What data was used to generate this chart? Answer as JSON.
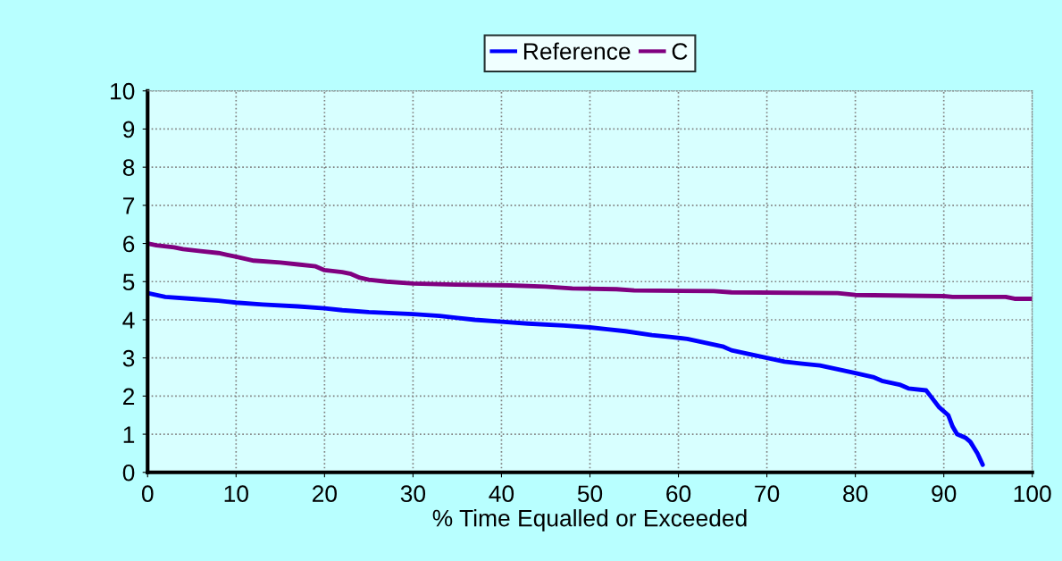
{
  "chart_data": {
    "type": "line",
    "xlabel": "% Time Equalled or Exceeded",
    "xlim": [
      0,
      100
    ],
    "xticks": [
      0,
      10,
      20,
      30,
      40,
      50,
      60,
      70,
      80,
      90,
      100
    ],
    "ylim": [
      0,
      10
    ],
    "yticks": [
      0,
      1,
      2,
      3,
      4,
      5,
      6,
      7,
      8,
      9,
      10
    ],
    "grid": true,
    "legend": "top",
    "marker": "none",
    "line_style": "solid",
    "series": [
      {
        "name": "Reference",
        "color": "#0000ff",
        "x": [
          0,
          2,
          5,
          8,
          10,
          13,
          17,
          20,
          22,
          25,
          30,
          33,
          35,
          37,
          40,
          43,
          47,
          50,
          52,
          54,
          57,
          59,
          61,
          63,
          65,
          66,
          68,
          70,
          72,
          74,
          76,
          78,
          80,
          82,
          83,
          85,
          86,
          88,
          88.5,
          89.5,
          90.5,
          91,
          91.5,
          92.5,
          93,
          93.8,
          94.4
        ],
        "values": [
          4.7,
          4.6,
          4.55,
          4.5,
          4.45,
          4.4,
          4.35,
          4.3,
          4.25,
          4.2,
          4.15,
          4.1,
          4.05,
          4.0,
          3.95,
          3.9,
          3.85,
          3.8,
          3.75,
          3.7,
          3.6,
          3.55,
          3.5,
          3.4,
          3.3,
          3.2,
          3.1,
          3.0,
          2.9,
          2.85,
          2.8,
          2.7,
          2.6,
          2.5,
          2.4,
          2.3,
          2.2,
          2.15,
          2.0,
          1.7,
          1.5,
          1.2,
          1.0,
          0.9,
          0.8,
          0.5,
          0.2
        ]
      },
      {
        "name": "C",
        "color": "#800080",
        "x": [
          0,
          1,
          3,
          4,
          6,
          8,
          9,
          10,
          11,
          12,
          15,
          17,
          19,
          20,
          22,
          23,
          24,
          25,
          27,
          30,
          35,
          41,
          45,
          48,
          53,
          55,
          64,
          66,
          78,
          80,
          90,
          91,
          97,
          98,
          100
        ],
        "values": [
          6.0,
          5.95,
          5.9,
          5.85,
          5.8,
          5.75,
          5.7,
          5.65,
          5.6,
          5.55,
          5.5,
          5.45,
          5.4,
          5.3,
          5.25,
          5.2,
          5.1,
          5.05,
          5.0,
          4.95,
          4.92,
          4.9,
          4.87,
          4.82,
          4.8,
          4.77,
          4.75,
          4.72,
          4.7,
          4.65,
          4.62,
          4.6,
          4.6,
          4.55,
          4.55
        ]
      }
    ]
  }
}
